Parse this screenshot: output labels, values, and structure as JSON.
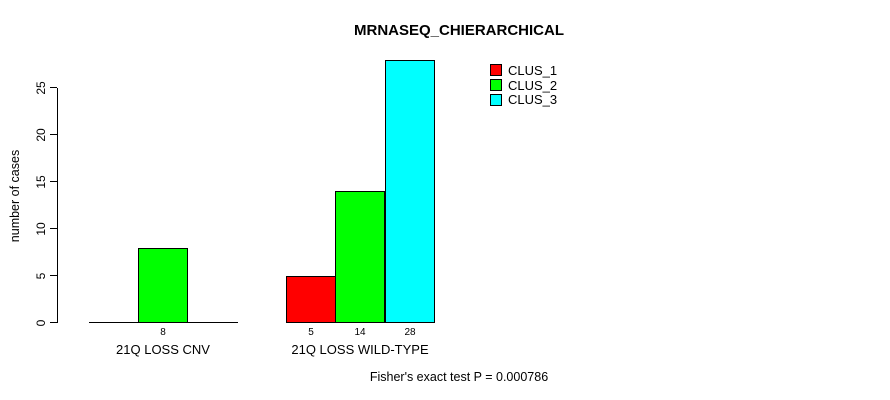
{
  "chart_data": {
    "type": "bar",
    "title": "MRNASEQ_CHIERARCHICAL",
    "ylabel": "number of cases",
    "xlabel": "",
    "annotation": "Fisher's exact test P = 0.000786",
    "categories": [
      "21Q LOSS CNV",
      "21Q LOSS WILD-TYPE"
    ],
    "series": [
      {
        "name": "CLUS_1",
        "color": "#ff0000",
        "values": [
          0,
          5
        ]
      },
      {
        "name": "CLUS_2",
        "color": "#00ff00",
        "values": [
          8,
          14
        ]
      },
      {
        "name": "CLUS_3",
        "color": "#00ffff",
        "values": [
          0,
          28
        ]
      }
    ],
    "yticks": [
      0,
      5,
      10,
      15,
      20,
      25
    ],
    "ylim": [
      0,
      28
    ],
    "grid": false,
    "legend_position": "top-right",
    "bar_border_color": "#000000",
    "value_labels_shown_for_positive_bars": true
  }
}
